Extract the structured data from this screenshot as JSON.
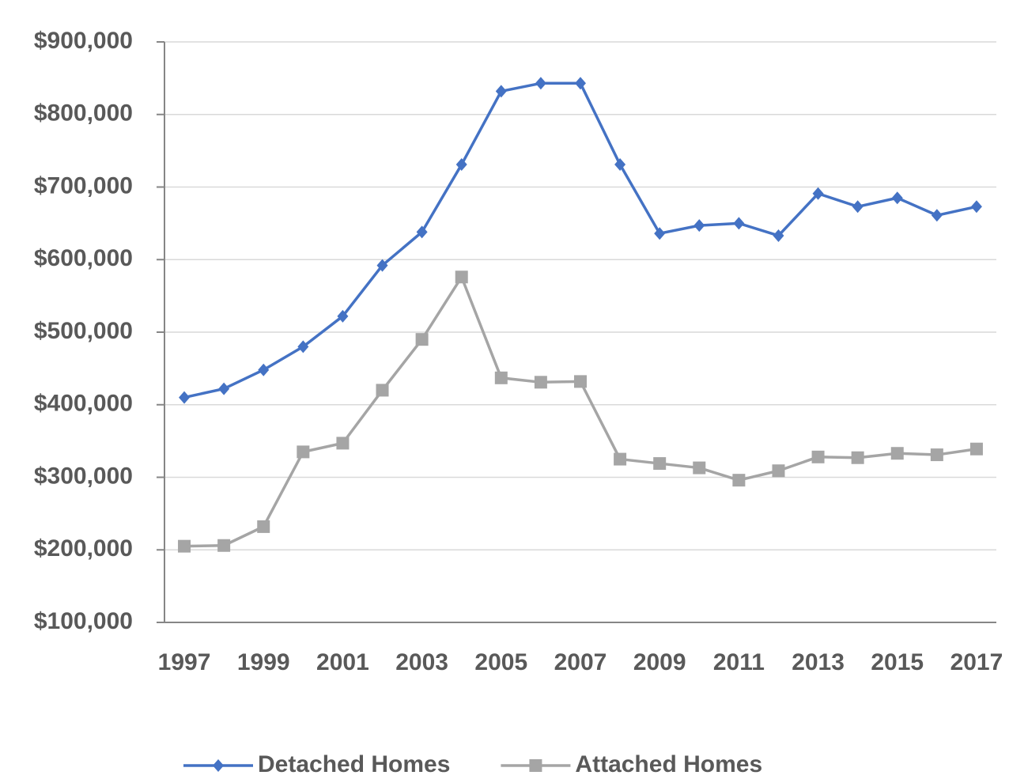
{
  "chart_data": {
    "type": "line",
    "categories": [
      "1997",
      null,
      "1999",
      null,
      "2001",
      null,
      "2003",
      null,
      "2005",
      null,
      "2007",
      null,
      "2009",
      null,
      "2011",
      null,
      "2013",
      null,
      "2015",
      null,
      "2017"
    ],
    "series": [
      {
        "name": "Detached Homes",
        "color": "#4472c4",
        "marker": "diamond",
        "values": [
          410000,
          422000,
          448000,
          480000,
          522000,
          592000,
          638000,
          731000,
          832000,
          843000,
          843000,
          731000,
          636000,
          647000,
          650000,
          633000,
          691000,
          673000,
          685000,
          661000,
          673000
        ]
      },
      {
        "name": "Attached Homes",
        "color": "#a5a5a5",
        "marker": "square",
        "values": [
          205000,
          206000,
          232000,
          335000,
          347000,
          420000,
          490000,
          576000,
          437000,
          431000,
          432000,
          325000,
          319000,
          313000,
          296000,
          309000,
          328000,
          327000,
          333000,
          331000,
          339000
        ]
      }
    ],
    "ylim": [
      100000,
      900000
    ],
    "yticks": [
      {
        "value": 100000,
        "label": "$100,000"
      },
      {
        "value": 200000,
        "label": "$200,000"
      },
      {
        "value": 300000,
        "label": "$300,000"
      },
      {
        "value": 400000,
        "label": "$400,000"
      },
      {
        "value": 500000,
        "label": "$500,000"
      },
      {
        "value": 600000,
        "label": "$600,000"
      },
      {
        "value": 700000,
        "label": "$700,000"
      },
      {
        "value": 800000,
        "label": "$800,000"
      },
      {
        "value": 900000,
        "label": "$900,000"
      }
    ],
    "grid": true,
    "legend": "bottom"
  }
}
